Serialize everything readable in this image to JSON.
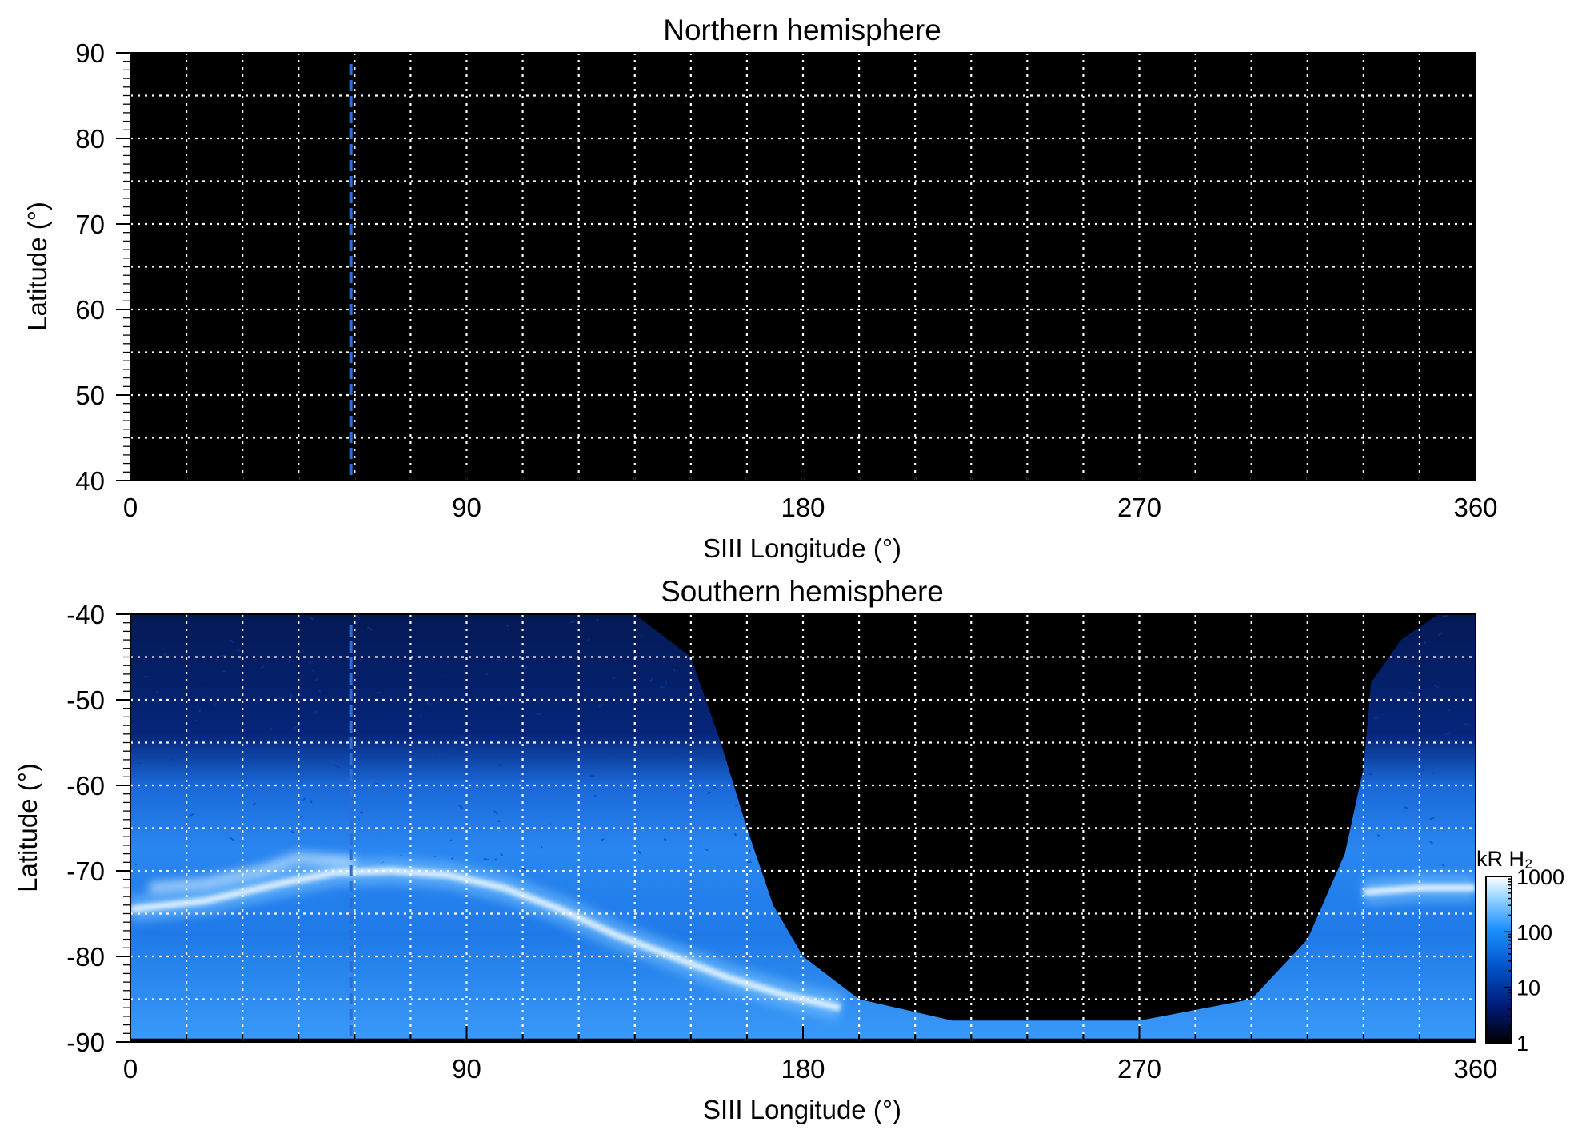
{
  "chart_data": [
    {
      "type": "heatmap",
      "title": "Northern hemisphere",
      "xlabel": "SIII Longitude (°)",
      "ylabel": "Latitude (°)",
      "xlim": [
        0,
        360
      ],
      "ylim": [
        40,
        90
      ],
      "x_ticks": [
        "0",
        "90",
        "180",
        "270",
        "360"
      ],
      "y_ticks": [
        "40",
        "50",
        "60",
        "70",
        "80",
        "90"
      ],
      "grid": true,
      "observed_region": "none",
      "marker_longitude": 59
    },
    {
      "type": "heatmap",
      "title": "Southern hemisphere",
      "xlabel": "SIII Longitude (°)",
      "ylabel": "Latitude (°)",
      "xlim": [
        0,
        360
      ],
      "ylim": [
        -90,
        -40
      ],
      "x_ticks": [
        "0",
        "90",
        "180",
        "270",
        "360"
      ],
      "y_ticks": [
        "-40",
        "-50",
        "-60",
        "-70",
        "-80",
        "-90"
      ],
      "grid": true,
      "marker_longitude": 59,
      "main_oval": [
        [
          0,
          -74.5
        ],
        [
          20,
          -73.5
        ],
        [
          40,
          -71.5
        ],
        [
          55,
          -70.2
        ],
        [
          70,
          -70
        ],
        [
          85,
          -70.5
        ],
        [
          100,
          -72
        ],
        [
          115,
          -74.5
        ],
        [
          130,
          -77.5
        ],
        [
          145,
          -80
        ],
        [
          160,
          -82.5
        ],
        [
          175,
          -84.5
        ],
        [
          190,
          -86
        ],
        [
          330,
          -72.5
        ],
        [
          345,
          -72
        ],
        [
          360,
          -72
        ]
      ],
      "secondary_arc": [
        [
          5,
          -72
        ],
        [
          20,
          -71.5
        ],
        [
          35,
          -70
        ],
        [
          45,
          -68.5
        ],
        [
          60,
          -69
        ]
      ],
      "unobserved_boundary": [
        [
          135,
          -40
        ],
        [
          150,
          -45
        ],
        [
          158,
          -55
        ],
        [
          165,
          -65
        ],
        [
          172,
          -74
        ],
        [
          180,
          -80
        ],
        [
          195,
          -85
        ],
        [
          220,
          -87.5
        ],
        [
          270,
          -87.5
        ],
        [
          300,
          -85
        ],
        [
          315,
          -78
        ],
        [
          325,
          -68
        ],
        [
          330,
          -58
        ],
        [
          332,
          -48
        ],
        [
          340,
          -43
        ],
        [
          350,
          -40
        ]
      ]
    }
  ],
  "colorbar": {
    "label": "kR H₂",
    "scale": "log",
    "range": [
      1,
      1000
    ],
    "ticks": [
      "1",
      "10",
      "100",
      "1000"
    ]
  },
  "colors": {
    "low": "#000000",
    "dark_blue": "#00208a",
    "blue": "#0070e0",
    "light_blue": "#40a8ff",
    "high": "#ffffff",
    "grid": "#ffffff",
    "marker": "#2a6fd8"
  }
}
